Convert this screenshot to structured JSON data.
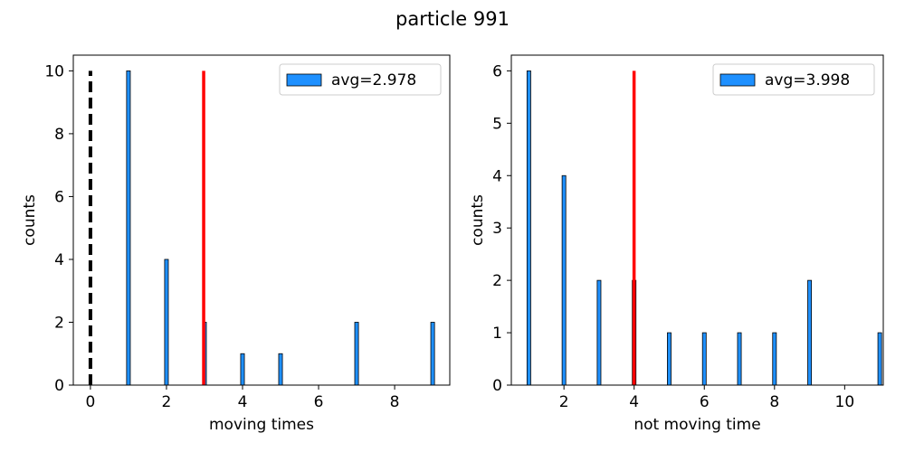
{
  "figure": {
    "suptitle": "particle 991"
  },
  "chart_data": [
    {
      "type": "bar",
      "xlabel": "moving times",
      "ylabel": "counts",
      "xlim": [
        -0.45,
        9.45
      ],
      "ylim": [
        0,
        10.5
      ],
      "xticks": [
        0,
        2,
        4,
        6,
        8
      ],
      "yticks": [
        0,
        2,
        4,
        6,
        8,
        10
      ],
      "bar_color": "#1e90ff",
      "bar_edge_color": "#000000",
      "bars": [
        {
          "x": 1,
          "count": 10
        },
        {
          "x": 2,
          "count": 4
        },
        {
          "x": 3,
          "count": 2
        },
        {
          "x": 4,
          "count": 1
        },
        {
          "x": 5,
          "count": 1
        },
        {
          "x": 7,
          "count": 2
        },
        {
          "x": 9,
          "count": 2
        }
      ],
      "avg_line": {
        "x": 2.978,
        "height": 10,
        "color": "#ff0000"
      },
      "zero_line": {
        "x": 0,
        "height": 10,
        "color": "#000000",
        "style": "dashed"
      },
      "legend": {
        "label": "avg=2.978",
        "placement": "upper right"
      }
    },
    {
      "type": "bar",
      "xlabel": "not moving time",
      "ylabel": "counts",
      "xlim": [
        0.5,
        11.1
      ],
      "ylim": [
        0,
        6.3
      ],
      "xticks": [
        2,
        4,
        6,
        8,
        10
      ],
      "yticks": [
        0,
        1,
        2,
        3,
        4,
        5,
        6
      ],
      "bar_color": "#1e90ff",
      "bar_edge_color": "#000000",
      "bars": [
        {
          "x": 1,
          "count": 6
        },
        {
          "x": 2,
          "count": 4
        },
        {
          "x": 3,
          "count": 2
        },
        {
          "x": 4,
          "count": 2
        },
        {
          "x": 5,
          "count": 1
        },
        {
          "x": 6,
          "count": 1
        },
        {
          "x": 7,
          "count": 1
        },
        {
          "x": 8,
          "count": 1
        },
        {
          "x": 9,
          "count": 2
        },
        {
          "x": 11,
          "count": 1
        }
      ],
      "avg_line": {
        "x": 3.998,
        "height": 6,
        "color": "#ff0000"
      },
      "legend": {
        "label": "avg=3.998",
        "placement": "upper right"
      }
    }
  ]
}
